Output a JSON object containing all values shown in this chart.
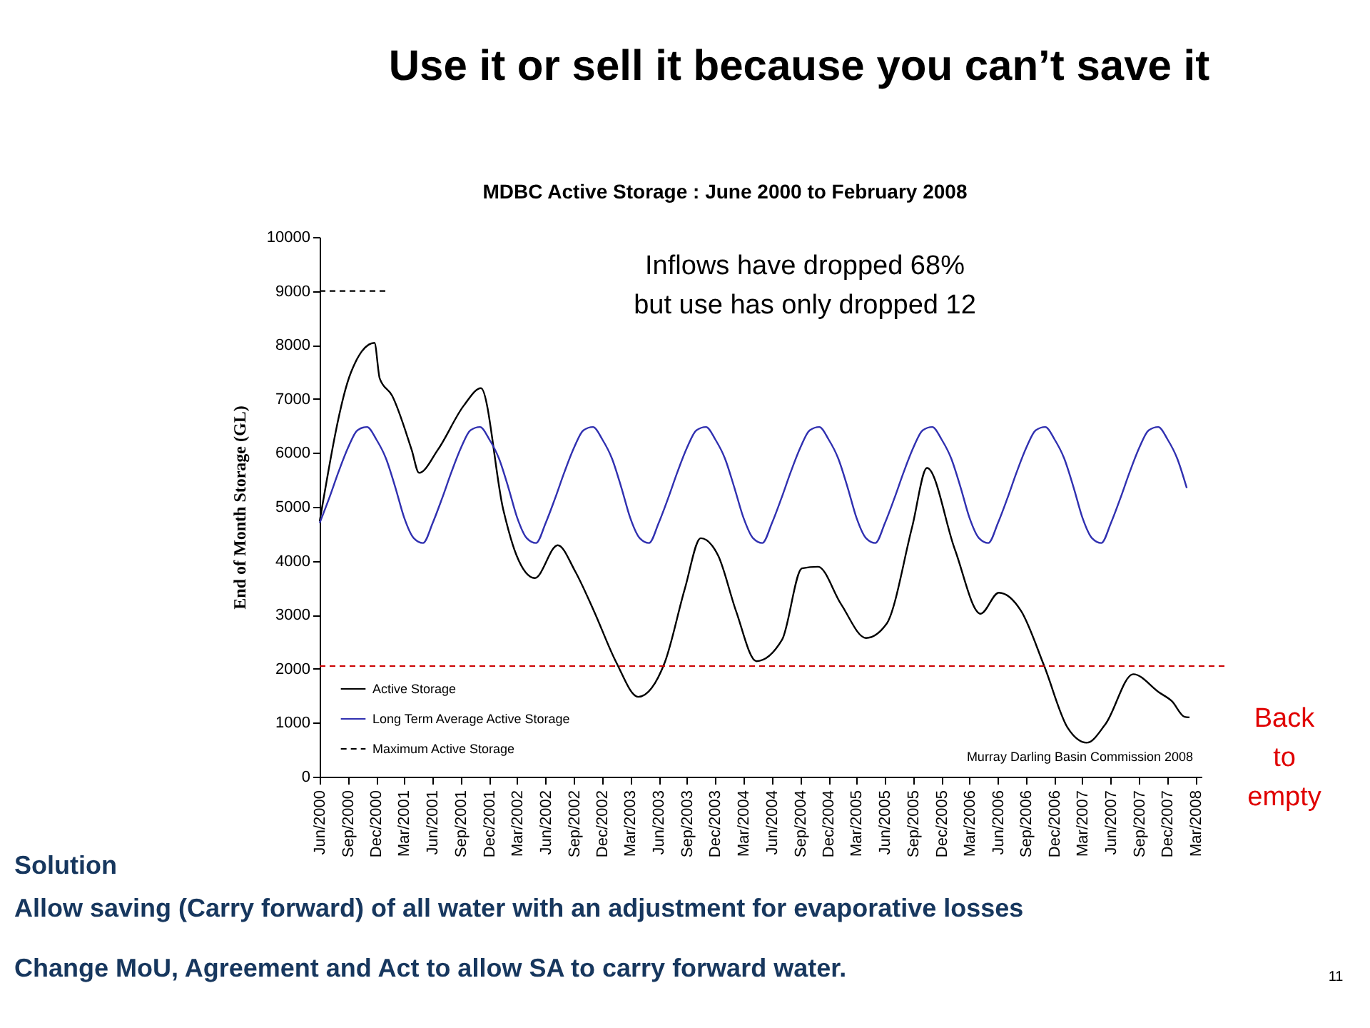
{
  "chart_data": {
    "type": "line",
    "title": "MDBC Active Storage : June 2000 to February 2008",
    "ylabel": "End of Month Storage (GL)",
    "xlim": [
      "2000-06-01",
      "2008-03-20"
    ],
    "ylim": [
      0,
      10000
    ],
    "yticks": [
      0,
      1000,
      2000,
      3000,
      4000,
      5000,
      6000,
      7000,
      8000,
      9000,
      10000
    ],
    "xticks": [
      {
        "value": "2000-06",
        "label": "Jun/2000"
      },
      {
        "value": "2000-09",
        "label": "Sep/2000"
      },
      {
        "value": "2000-12",
        "label": "Dec/2000"
      },
      {
        "value": "2001-03",
        "label": "Mar/2001"
      },
      {
        "value": "2001-06",
        "label": "Jun/2001"
      },
      {
        "value": "2001-09",
        "label": "Sep/2001"
      },
      {
        "value": "2001-12",
        "label": "Dec/2001"
      },
      {
        "value": "2002-03",
        "label": "Mar/2002"
      },
      {
        "value": "2002-06",
        "label": "Jun/2002"
      },
      {
        "value": "2002-09",
        "label": "Sep/2002"
      },
      {
        "value": "2002-12",
        "label": "Dec/2002"
      },
      {
        "value": "2003-03",
        "label": "Mar/2003"
      },
      {
        "value": "2003-06",
        "label": "Jun/2003"
      },
      {
        "value": "2003-09",
        "label": "Sep/2003"
      },
      {
        "value": "2003-12",
        "label": "Dec/2003"
      },
      {
        "value": "2004-03",
        "label": "Mar/2004"
      },
      {
        "value": "2004-06",
        "label": "Jun/2004"
      },
      {
        "value": "2004-09",
        "label": "Sep/2004"
      },
      {
        "value": "2004-12",
        "label": "Dec/2004"
      },
      {
        "value": "2005-03",
        "label": "Mar/2005"
      },
      {
        "value": "2005-06",
        "label": "Jun/2005"
      },
      {
        "value": "2005-09",
        "label": "Sep/2005"
      },
      {
        "value": "2005-12",
        "label": "Dec/2005"
      },
      {
        "value": "2006-03",
        "label": "Mar/2006"
      },
      {
        "value": "2006-06",
        "label": "Jun/2006"
      },
      {
        "value": "2006-09",
        "label": "Sep/2006"
      },
      {
        "value": "2006-12",
        "label": "Dec/2006"
      },
      {
        "value": "2007-03",
        "label": "Mar/2007"
      },
      {
        "value": "2007-06",
        "label": "Jun/2007"
      },
      {
        "value": "2007-09",
        "label": "Sep/2007"
      },
      {
        "value": "2007-12",
        "label": "Dec/2007"
      },
      {
        "value": "2008-03",
        "label": "Mar/2008"
      }
    ],
    "grid": false,
    "legend": "bottom left",
    "series": [
      {
        "name": "Active Storage",
        "color": "#000000",
        "x": [
          "2000-06-01",
          "2000-09-10",
          "2000-11-25",
          "2000-12-12",
          "2001-01-21",
          "2001-03-25",
          "2001-04-18",
          "2001-06-18",
          "2001-09-10",
          "2001-11-04",
          "2002-01-15",
          "2002-02-27",
          "2002-04-27",
          "2002-07-10",
          "2002-09-04",
          "2002-11-04",
          "2003-01-15",
          "2003-03-27",
          "2003-06-21",
          "2003-08-25",
          "2003-10-15",
          "2003-12-10",
          "2004-02-06",
          "2004-04-12",
          "2004-07-04",
          "2004-09-06",
          "2004-10-28",
          "2005-01-10",
          "2005-04-01",
          "2005-06-06",
          "2005-08-28",
          "2005-10-15",
          "2006-01-13",
          "2006-04-06",
          "2006-06-04",
          "2006-08-15",
          "2006-10-28",
          "2007-01-13",
          "2007-03-15",
          "2007-05-15",
          "2007-08-12",
          "2007-11-04",
          "2007-12-15",
          "2008-01-25",
          "2008-02-10"
        ],
        "values": [
          4730,
          7490,
          8040,
          7380,
          7060,
          6060,
          5630,
          6060,
          6880,
          7200,
          4950,
          4100,
          3680,
          4290,
          3810,
          3070,
          2120,
          1480,
          2120,
          3490,
          4420,
          4100,
          3070,
          2140,
          2540,
          3860,
          3890,
          3200,
          2570,
          2830,
          4630,
          5720,
          4210,
          3020,
          3410,
          3070,
          2060,
          900,
          630,
          980,
          1900,
          1560,
          1400,
          1110,
          1100
        ]
      },
      {
        "name": "Long Term Average Active Storage",
        "color": "#3030b0",
        "x": [
          "2000-06",
          "2000-07",
          "2000-08",
          "2000-09",
          "2000-10",
          "2000-11",
          "2000-12",
          "2001-01",
          "2001-02",
          "2001-03",
          "2001-04",
          "2001-05",
          "2001-06",
          "2001-07",
          "2001-08",
          "2001-09",
          "2001-10",
          "2001-11",
          "2001-12",
          "2002-01",
          "2002-02",
          "2002-03",
          "2002-04",
          "2002-05",
          "2002-06",
          "2002-07",
          "2002-08",
          "2002-09",
          "2002-10",
          "2002-11",
          "2002-12",
          "2003-01",
          "2003-02",
          "2003-03",
          "2003-04",
          "2003-05",
          "2003-06",
          "2003-07",
          "2003-08",
          "2003-09",
          "2003-10",
          "2003-11",
          "2003-12",
          "2004-01",
          "2004-02",
          "2004-03",
          "2004-04",
          "2004-05",
          "2004-06",
          "2004-07",
          "2004-08",
          "2004-09",
          "2004-10",
          "2004-11",
          "2004-12",
          "2005-01",
          "2005-02",
          "2005-03",
          "2005-04",
          "2005-05",
          "2005-06",
          "2005-07",
          "2005-08",
          "2005-09",
          "2005-10",
          "2005-11",
          "2005-12",
          "2006-01",
          "2006-02",
          "2006-03",
          "2006-04",
          "2006-05",
          "2006-06",
          "2006-07",
          "2006-08",
          "2006-09",
          "2006-10",
          "2006-11",
          "2006-12",
          "2007-01",
          "2007-02",
          "2007-03",
          "2007-04",
          "2007-05",
          "2007-06",
          "2007-07",
          "2007-08",
          "2007-09",
          "2007-10",
          "2007-11",
          "2007-12",
          "2008-01",
          "2008-02"
        ],
        "values": [
          4700,
          5150,
          5650,
          6100,
          6420,
          6480,
          6250,
          5900,
          5350,
          4800,
          4420,
          4330,
          4700,
          5150,
          5650,
          6100,
          6420,
          6480,
          6250,
          5900,
          5350,
          4800,
          4420,
          4330,
          4700,
          5150,
          5650,
          6100,
          6420,
          6480,
          6250,
          5900,
          5350,
          4800,
          4420,
          4330,
          4700,
          5150,
          5650,
          6100,
          6420,
          6480,
          6250,
          5900,
          5350,
          4800,
          4420,
          4330,
          4700,
          5150,
          5650,
          6100,
          6420,
          6480,
          6250,
          5900,
          5350,
          4800,
          4420,
          4330,
          4700,
          5150,
          5650,
          6100,
          6420,
          6480,
          6250,
          5900,
          5350,
          4800,
          4420,
          4330,
          4700,
          5150,
          5650,
          6100,
          6420,
          6480,
          6250,
          5900,
          5350,
          4800,
          4420,
          4330,
          4700,
          5150,
          5650,
          6100,
          6420,
          6480,
          6250,
          5900,
          5350
        ]
      },
      {
        "name": "Maximum Active Storage",
        "color": "#000000",
        "line_style": "dashed",
        "x": [
          "2000-06-01",
          "2001-01-10"
        ],
        "values": [
          9000,
          9000
        ]
      }
    ],
    "ref_lines": [
      {
        "axis": "y",
        "value": 2050,
        "color": "#cc0000",
        "line_style": "dashed"
      }
    ],
    "annotations": [
      "Use it or sell it because you can’t save it",
      "Inflows have dropped 68%\n but use has only dropped 12",
      "Murray Darling Basin Commission 2008",
      "Back\nto\nempty",
      "Solution",
      "Allow saving (Carry forward) of all water with an adjustment for evaporative losses",
      "Change MoU, Agreement and Act to allow SA to carry forward water.",
      "11"
    ]
  }
}
